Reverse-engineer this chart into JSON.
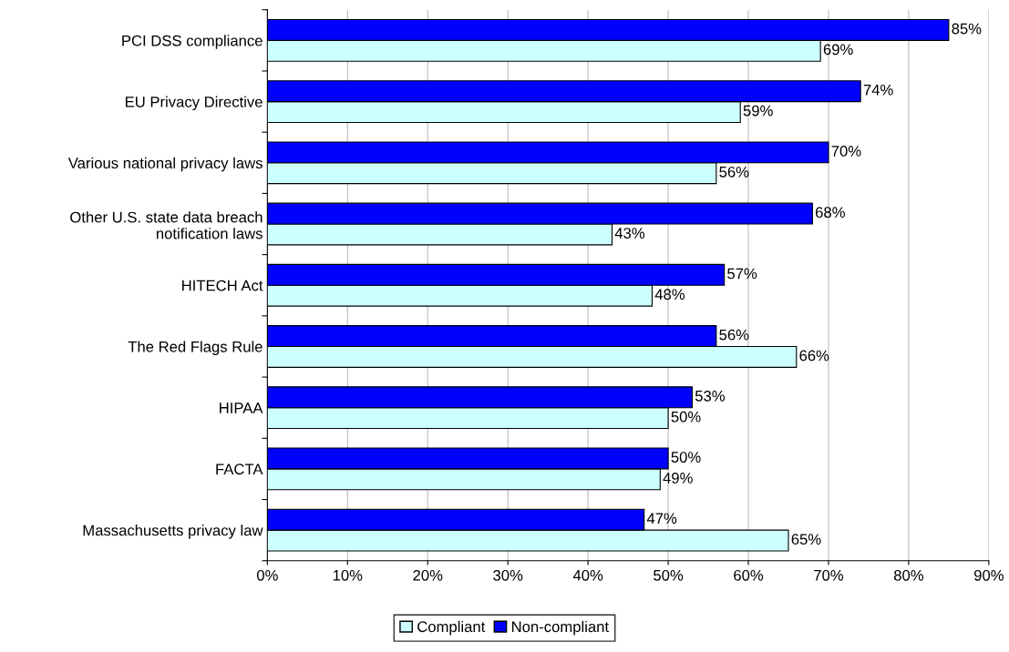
{
  "chart_data": {
    "type": "bar",
    "orientation": "horizontal",
    "categories": [
      "PCI DSS compliance",
      "EU Privacy Directive",
      "Various national privacy laws",
      "Other U.S. state data breach\nnotification laws",
      "HITECH Act",
      "The Red Flags Rule",
      "HIPAA",
      "FACTA",
      "Massachusetts privacy law"
    ],
    "series": [
      {
        "name": "Compliant",
        "color": "#ccffff",
        "values": [
          69,
          59,
          56,
          43,
          48,
          66,
          50,
          49,
          65
        ],
        "value_labels": [
          "69%",
          "59%",
          "56%",
          "43%",
          "48%",
          "66%",
          "50%",
          "49%",
          "65%"
        ]
      },
      {
        "name": "Non-compliant",
        "color": "#0000ff",
        "values": [
          85,
          74,
          70,
          68,
          57,
          56,
          53,
          50,
          47
        ],
        "value_labels": [
          "85%",
          "74%",
          "70%",
          "68%",
          "57%",
          "56%",
          "53%",
          "50%",
          "47%"
        ]
      }
    ],
    "xlim": [
      0,
      90
    ],
    "xticks": [
      {
        "value": 0,
        "label": "0%"
      },
      {
        "value": 10,
        "label": "10%"
      },
      {
        "value": 20,
        "label": "20%"
      },
      {
        "value": 30,
        "label": "30%"
      },
      {
        "value": 40,
        "label": "40%"
      },
      {
        "value": 50,
        "label": "50%"
      },
      {
        "value": 60,
        "label": "60%"
      },
      {
        "value": 70,
        "label": "70%"
      },
      {
        "value": 80,
        "label": "80%"
      },
      {
        "value": 90,
        "label": "90%"
      }
    ],
    "grid": "x",
    "legend": "bottom"
  }
}
